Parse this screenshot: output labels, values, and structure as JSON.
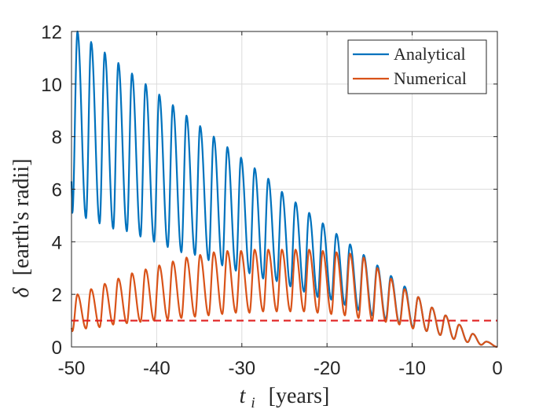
{
  "chart_data": {
    "type": "line",
    "title": "",
    "xlabel": {
      "var": "t",
      "sub": "i",
      "unit": "[years]"
    },
    "ylabel": {
      "var": "δ",
      "unit": "[earth's radii]"
    },
    "xlim": [
      -50,
      0
    ],
    "ylim": [
      0,
      12
    ],
    "xticks": [
      -50,
      -40,
      -30,
      -20,
      -10,
      0
    ],
    "xtick_labels": [
      "-50",
      "-40",
      "-30",
      "-20",
      "-10",
      "0"
    ],
    "yticks": [
      0,
      2,
      4,
      6,
      8,
      10,
      12
    ],
    "ytick_labels": [
      "0",
      "2",
      "4",
      "6",
      "8",
      "10",
      "12"
    ],
    "grid": true,
    "legend_position": "top-right",
    "reference_line": {
      "y": 1,
      "style": "dashed",
      "color": "#e02020"
    },
    "series": [
      {
        "name": "Analytical",
        "color": "#0072bd",
        "oscillation_period_years": 1.6,
        "peaks": [
          {
            "t": -49.3,
            "v": 12.0
          },
          {
            "t": -47.7,
            "v": 11.6
          },
          {
            "t": -46.1,
            "v": 11.2
          },
          {
            "t": -44.5,
            "v": 10.8
          },
          {
            "t": -42.9,
            "v": 10.4
          },
          {
            "t": -41.3,
            "v": 10.0
          },
          {
            "t": -39.7,
            "v": 9.6
          },
          {
            "t": -38.1,
            "v": 9.2
          },
          {
            "t": -36.5,
            "v": 8.8
          },
          {
            "t": -34.9,
            "v": 8.4
          },
          {
            "t": -33.3,
            "v": 8.0
          },
          {
            "t": -31.7,
            "v": 7.6
          },
          {
            "t": -30.1,
            "v": 7.2
          },
          {
            "t": -28.5,
            "v": 6.8
          },
          {
            "t": -26.9,
            "v": 6.4
          },
          {
            "t": -25.3,
            "v": 5.9
          },
          {
            "t": -23.7,
            "v": 5.5
          },
          {
            "t": -22.1,
            "v": 5.1
          },
          {
            "t": -20.5,
            "v": 4.7
          },
          {
            "t": -18.9,
            "v": 4.3
          },
          {
            "t": -17.3,
            "v": 3.9
          },
          {
            "t": -15.7,
            "v": 3.5
          },
          {
            "t": -14.1,
            "v": 3.1
          },
          {
            "t": -12.5,
            "v": 2.7
          },
          {
            "t": -10.9,
            "v": 2.3
          },
          {
            "t": -9.3,
            "v": 1.9
          },
          {
            "t": -7.7,
            "v": 1.5
          },
          {
            "t": -6.1,
            "v": 1.2
          },
          {
            "t": -4.5,
            "v": 0.85
          },
          {
            "t": -2.9,
            "v": 0.5
          },
          {
            "t": -1.3,
            "v": 0.2
          }
        ],
        "troughs": [
          {
            "t": -49.9,
            "v": 5.1
          },
          {
            "t": -48.3,
            "v": 4.9
          },
          {
            "t": -46.7,
            "v": 4.7
          },
          {
            "t": -45.1,
            "v": 4.5
          },
          {
            "t": -43.5,
            "v": 4.4
          },
          {
            "t": -41.9,
            "v": 4.2
          },
          {
            "t": -40.3,
            "v": 4.0
          },
          {
            "t": -38.7,
            "v": 3.8
          },
          {
            "t": -37.1,
            "v": 3.6
          },
          {
            "t": -35.5,
            "v": 3.5
          },
          {
            "t": -33.9,
            "v": 3.3
          },
          {
            "t": -32.3,
            "v": 3.1
          },
          {
            "t": -30.7,
            "v": 2.9
          },
          {
            "t": -29.1,
            "v": 2.8
          },
          {
            "t": -27.5,
            "v": 2.6
          },
          {
            "t": -25.9,
            "v": 2.5
          },
          {
            "t": -24.3,
            "v": 2.3
          },
          {
            "t": -22.7,
            "v": 2.1
          },
          {
            "t": -21.1,
            "v": 1.9
          },
          {
            "t": -19.5,
            "v": 1.8
          },
          {
            "t": -17.9,
            "v": 1.6
          },
          {
            "t": -16.3,
            "v": 1.4
          },
          {
            "t": -14.7,
            "v": 1.2
          },
          {
            "t": -13.1,
            "v": 1.05
          },
          {
            "t": -11.5,
            "v": 0.9
          },
          {
            "t": -9.9,
            "v": 0.75
          },
          {
            "t": -8.3,
            "v": 0.6
          },
          {
            "t": -6.7,
            "v": 0.45
          },
          {
            "t": -5.1,
            "v": 0.3
          },
          {
            "t": -3.5,
            "v": 0.18
          },
          {
            "t": -1.9,
            "v": 0.08
          },
          {
            "t": 0,
            "v": 0.0
          }
        ]
      },
      {
        "name": "Numerical",
        "color": "#d95319",
        "oscillation_period_years": 1.6,
        "peaks": [
          {
            "t": -49.3,
            "v": 2.0
          },
          {
            "t": -47.7,
            "v": 2.2
          },
          {
            "t": -46.1,
            "v": 2.4
          },
          {
            "t": -44.5,
            "v": 2.6
          },
          {
            "t": -42.9,
            "v": 2.8
          },
          {
            "t": -41.3,
            "v": 2.95
          },
          {
            "t": -39.7,
            "v": 3.1
          },
          {
            "t": -38.1,
            "v": 3.25
          },
          {
            "t": -36.5,
            "v": 3.4
          },
          {
            "t": -34.9,
            "v": 3.5
          },
          {
            "t": -33.3,
            "v": 3.6
          },
          {
            "t": -31.7,
            "v": 3.65
          },
          {
            "t": -30.1,
            "v": 3.65
          },
          {
            "t": -28.5,
            "v": 3.7
          },
          {
            "t": -26.9,
            "v": 3.7
          },
          {
            "t": -25.3,
            "v": 3.7
          },
          {
            "t": -23.7,
            "v": 3.7
          },
          {
            "t": -22.1,
            "v": 3.7
          },
          {
            "t": -20.5,
            "v": 3.65
          },
          {
            "t": -18.9,
            "v": 3.6
          },
          {
            "t": -17.3,
            "v": 3.55
          },
          {
            "t": -15.7,
            "v": 3.4
          },
          {
            "t": -14.1,
            "v": 3.0
          },
          {
            "t": -12.5,
            "v": 2.6
          },
          {
            "t": -10.9,
            "v": 2.2
          },
          {
            "t": -9.3,
            "v": 1.9
          },
          {
            "t": -7.7,
            "v": 1.5
          },
          {
            "t": -6.1,
            "v": 1.2
          },
          {
            "t": -4.5,
            "v": 0.85
          },
          {
            "t": -2.9,
            "v": 0.5
          },
          {
            "t": -1.3,
            "v": 0.2
          }
        ],
        "troughs": [
          {
            "t": -49.9,
            "v": 0.6
          },
          {
            "t": -48.3,
            "v": 0.7
          },
          {
            "t": -46.7,
            "v": 0.75
          },
          {
            "t": -45.1,
            "v": 0.85
          },
          {
            "t": -43.5,
            "v": 0.9
          },
          {
            "t": -41.9,
            "v": 0.95
          },
          {
            "t": -40.3,
            "v": 1.0
          },
          {
            "t": -38.7,
            "v": 1.05
          },
          {
            "t": -37.1,
            "v": 1.1
          },
          {
            "t": -35.5,
            "v": 1.15
          },
          {
            "t": -33.9,
            "v": 1.2
          },
          {
            "t": -32.3,
            "v": 1.25
          },
          {
            "t": -30.7,
            "v": 1.3
          },
          {
            "t": -29.1,
            "v": 1.3
          },
          {
            "t": -27.5,
            "v": 1.35
          },
          {
            "t": -25.9,
            "v": 1.35
          },
          {
            "t": -24.3,
            "v": 1.35
          },
          {
            "t": -22.7,
            "v": 1.35
          },
          {
            "t": -21.1,
            "v": 1.3
          },
          {
            "t": -19.5,
            "v": 1.25
          },
          {
            "t": -17.9,
            "v": 1.2
          },
          {
            "t": -16.3,
            "v": 1.1
          },
          {
            "t": -14.7,
            "v": 1.0
          },
          {
            "t": -13.1,
            "v": 0.95
          },
          {
            "t": -11.5,
            "v": 0.85
          },
          {
            "t": -9.9,
            "v": 0.7
          },
          {
            "t": -8.3,
            "v": 0.6
          },
          {
            "t": -6.7,
            "v": 0.45
          },
          {
            "t": -5.1,
            "v": 0.3
          },
          {
            "t": -3.5,
            "v": 0.18
          },
          {
            "t": -1.9,
            "v": 0.08
          },
          {
            "t": 0,
            "v": 0.0
          }
        ]
      }
    ]
  }
}
